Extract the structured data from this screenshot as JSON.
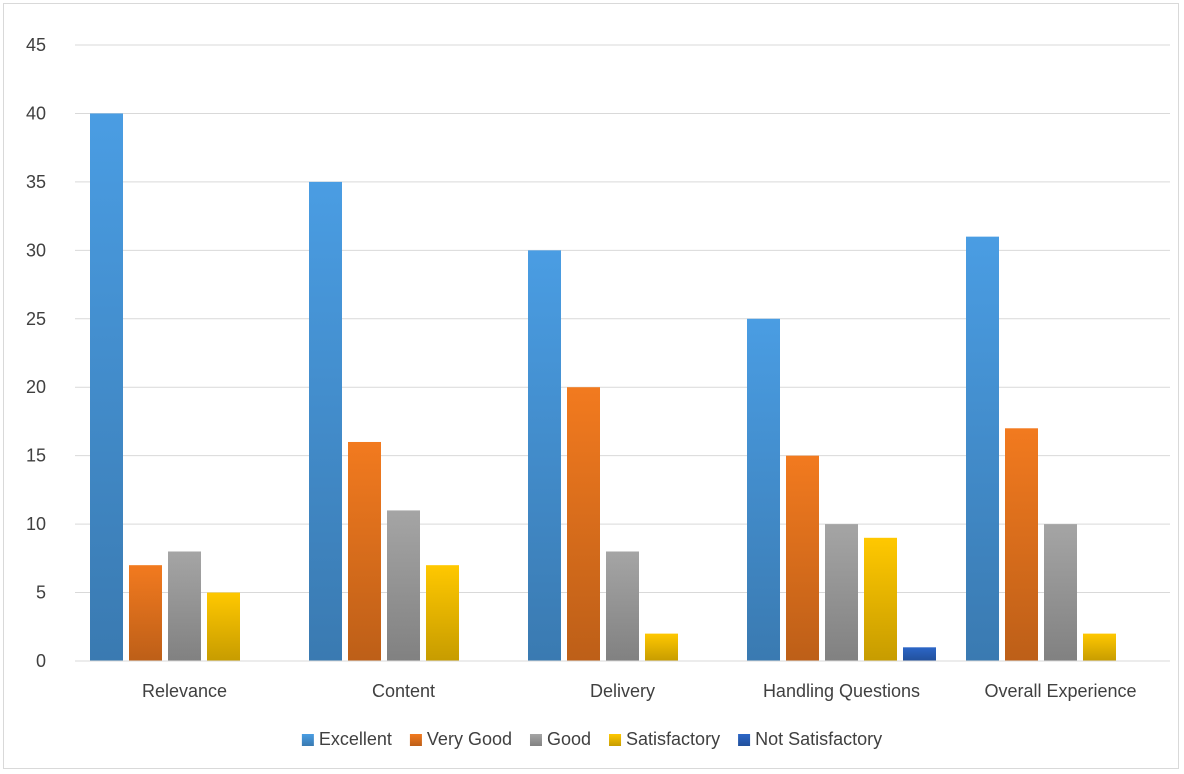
{
  "chart_data": {
    "type": "bar",
    "categories": [
      "Relevance",
      "Content",
      "Delivery",
      "Handling Questions",
      "Overall Experience"
    ],
    "series": [
      {
        "name": "Excellent",
        "values": [
          40,
          35,
          30,
          25,
          31
        ],
        "color": "#4a9de3"
      },
      {
        "name": "Very Good",
        "values": [
          7,
          16,
          20,
          15,
          17
        ],
        "color": "#f27a1f"
      },
      {
        "name": "Good",
        "values": [
          8,
          11,
          8,
          10,
          10
        ],
        "color": "#a5a5a5"
      },
      {
        "name": "Satisfactory",
        "values": [
          5,
          7,
          2,
          9,
          2
        ],
        "color": "#ffc800"
      },
      {
        "name": "Not Satisfactory",
        "values": [
          0,
          0,
          0,
          1,
          0
        ],
        "color": "#2c66c7"
      }
    ],
    "yticks": [
      "0",
      "5",
      "10",
      "15",
      "20",
      "25",
      "30",
      "35",
      "40",
      "45"
    ],
    "ylim": [
      0,
      45
    ],
    "grid": true,
    "legend_position": "bottom",
    "title": "",
    "xlabel": "",
    "ylabel": ""
  }
}
